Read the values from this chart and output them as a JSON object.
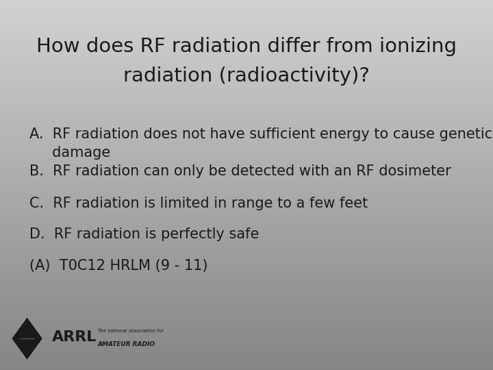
{
  "title_line1": "How does RF radiation differ from ionizing",
  "title_line2": "radiation (radioactivity)?",
  "answer_a_line1": "A.  RF radiation does not have sufficient energy to cause genetic",
  "answer_a_line2": "     damage",
  "answer_b": "B.  RF radiation can only be detected with an RF dosimeter",
  "answer_c": "C.  RF radiation is limited in range to a few feet",
  "answer_d": "D.  RF radiation is perfectly safe",
  "answer_key": "(A)  T0C12 HRLM (9 - 11)",
  "bg_color_top": "#d0d0d0",
  "bg_color_bottom": "#888888",
  "text_color": "#1a1a1a",
  "title_fontsize": 21,
  "body_fontsize": 15,
  "title_font": "DejaVu Sans",
  "body_font": "DejaVu Sans"
}
